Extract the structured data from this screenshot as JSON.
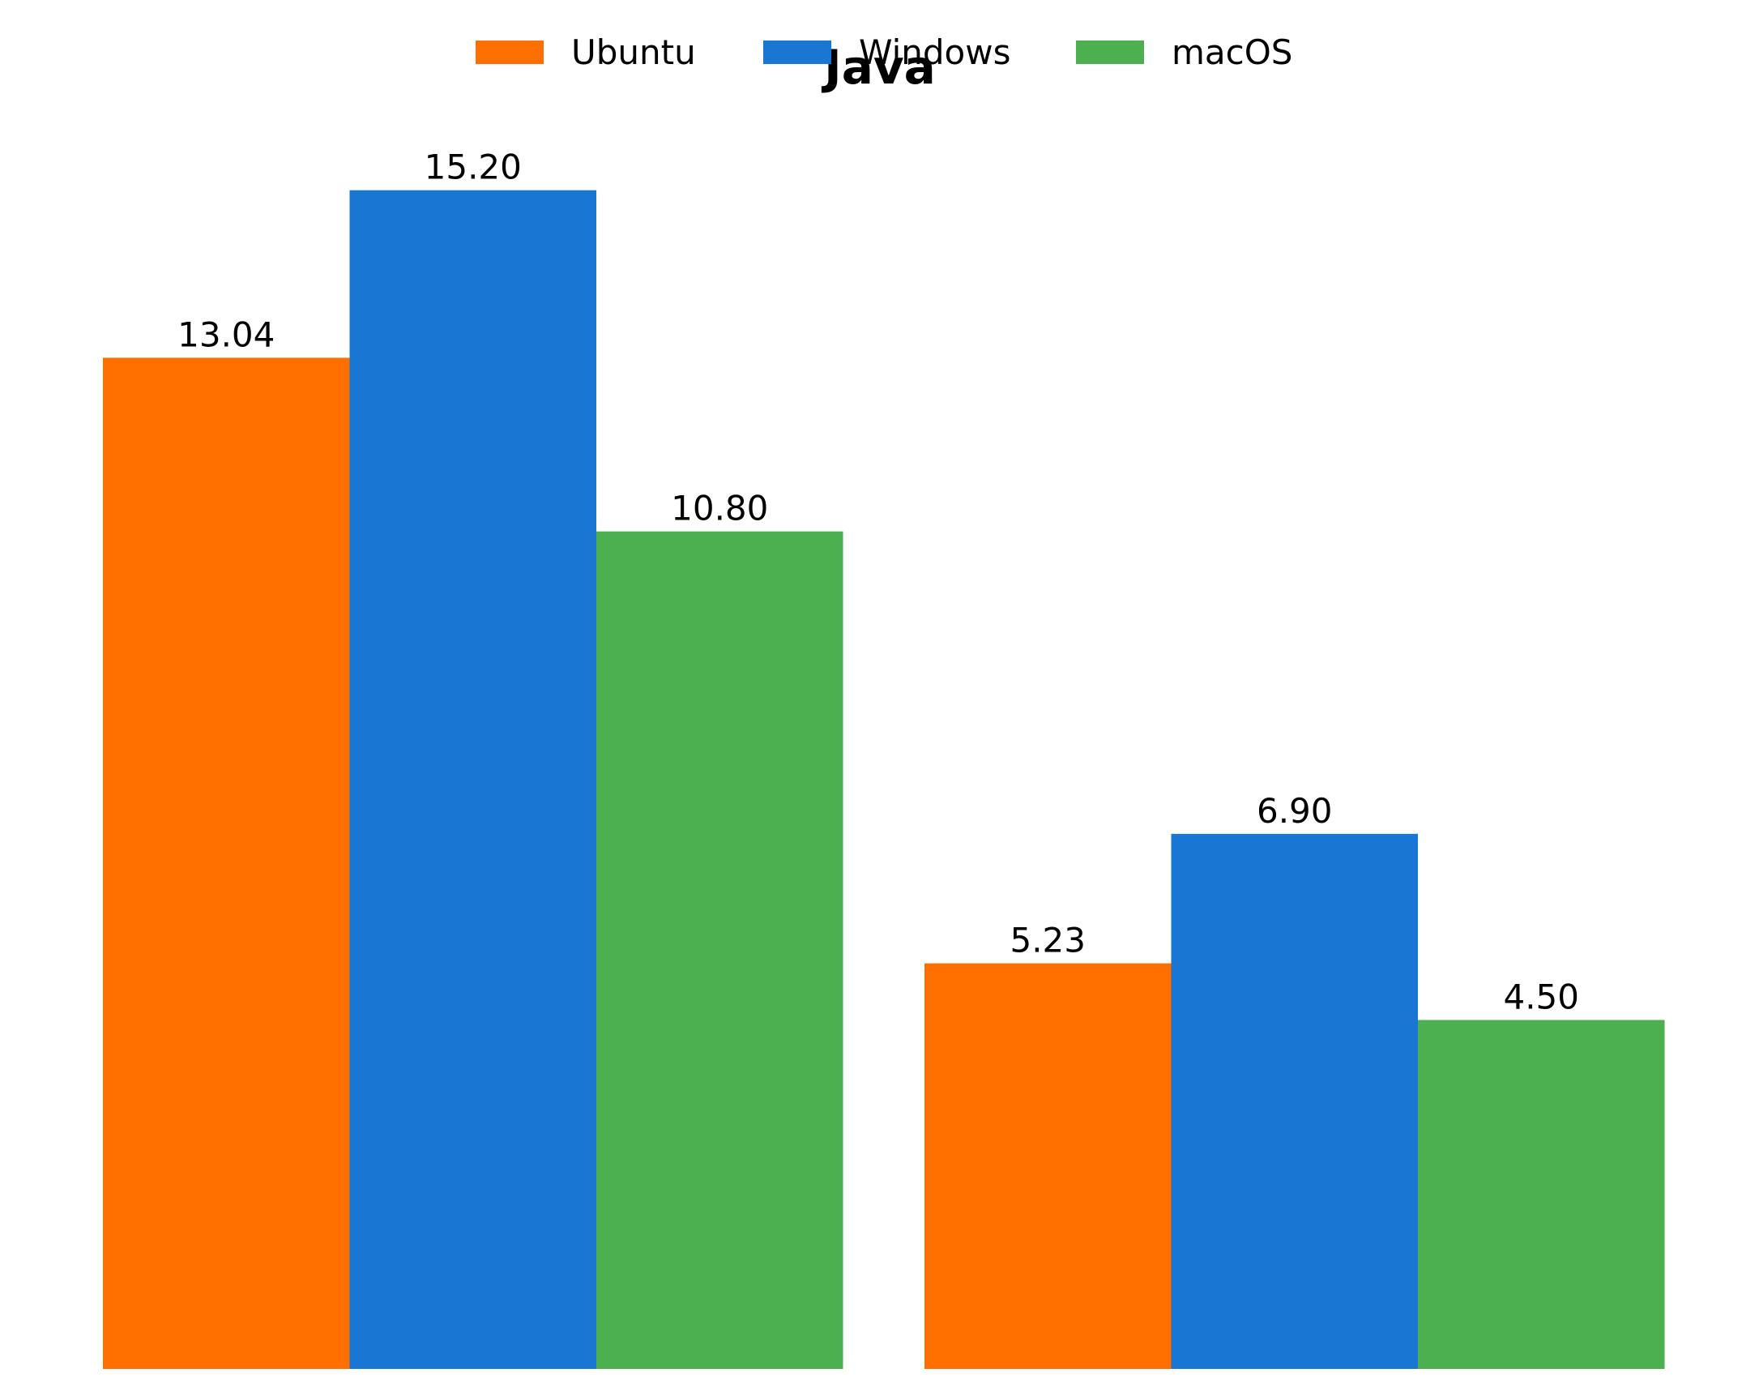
{
  "chart_data": {
    "type": "bar",
    "title": "Java",
    "categories": [
      "",
      ""
    ],
    "series": [
      {
        "name": "Ubuntu",
        "color": "#FF6F00",
        "values": [
          13.04,
          5.23
        ],
        "labels": [
          "13.04",
          "5.23"
        ]
      },
      {
        "name": "Windows",
        "color": "#1976D2",
        "values": [
          15.2,
          6.9
        ],
        "labels": [
          "15.20",
          "6.90"
        ]
      },
      {
        "name": "macOS",
        "color": "#4CAF50",
        "values": [
          10.8,
          4.5
        ],
        "labels": [
          "10.80",
          "4.50"
        ]
      }
    ],
    "xlabel": "",
    "ylabel": "",
    "ylim": [
      0,
      15.96
    ],
    "grid": false,
    "axes_visible": false,
    "legend_position": "top-center"
  }
}
